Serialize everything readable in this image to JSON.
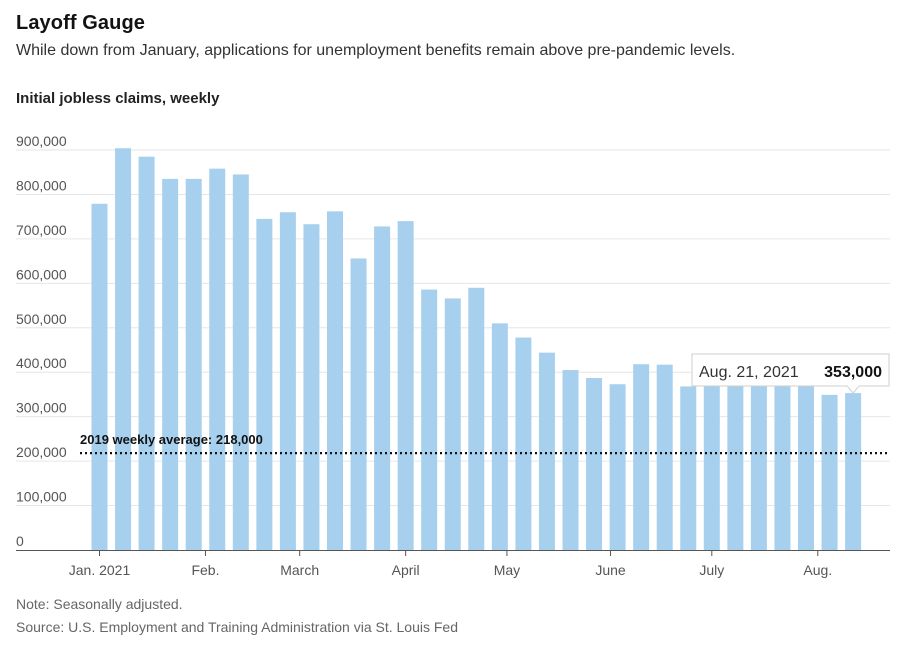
{
  "headline": "Layoff Gauge",
  "dek": "While down from January, applications for unemployment benefits remain above pre-pandemic levels.",
  "note": "Note: Seasonally adjusted.",
  "source": "Source: U.S. Employment and Training Administration via St. Louis Fed",
  "colors": {
    "bar": "#a7d0ef",
    "grid": "#e6e6e6",
    "axis": "#555555",
    "reference": "#121212"
  },
  "chart_data": {
    "type": "bar",
    "title": "Initial jobless claims, weekly",
    "xlabel": "",
    "ylabel": "",
    "ylim": [
      0,
      900000
    ],
    "yticks": [
      0,
      100000,
      200000,
      300000,
      400000,
      500000,
      600000,
      700000,
      800000,
      900000
    ],
    "ytick_labels": [
      "0",
      "100,000",
      "200,000",
      "300,000",
      "400,000",
      "500,000",
      "600,000",
      "700,000",
      "800,000",
      "900,000"
    ],
    "month_labels": [
      {
        "label": "Jan. 2021",
        "index": 0
      },
      {
        "label": "Feb.",
        "index": 4.5
      },
      {
        "label": "March",
        "index": 8.5
      },
      {
        "label": "April",
        "index": 13
      },
      {
        "label": "May",
        "index": 17.3
      },
      {
        "label": "June",
        "index": 21.7
      },
      {
        "label": "July",
        "index": 26
      },
      {
        "label": "Aug.",
        "index": 30.5
      }
    ],
    "values": [
      779000,
      904000,
      885000,
      835000,
      835000,
      858000,
      845000,
      745000,
      760000,
      733000,
      762000,
      656000,
      728000,
      740000,
      586000,
      566000,
      590000,
      510000,
      478000,
      444000,
      405000,
      387000,
      373000,
      418000,
      417000,
      368000,
      390000,
      368000,
      400000,
      375000,
      380000,
      349000,
      353000
    ],
    "reference_line": {
      "label": "2019 weekly average: 218,000",
      "value": 218000
    },
    "tooltip": {
      "date": "Aug. 21, 2021",
      "value": "353,000",
      "index": 32
    },
    "grid": true,
    "legend": "none"
  }
}
